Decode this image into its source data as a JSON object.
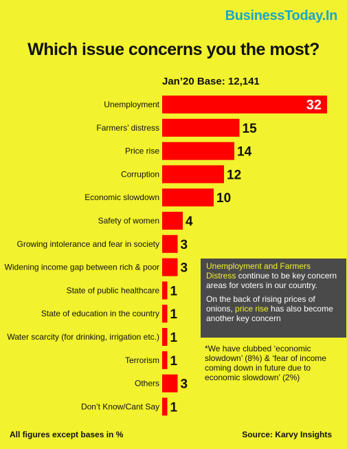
{
  "brand": {
    "name_part1": "BusinessToday",
    "name_part2": ".In"
  },
  "chart_data": {
    "type": "bar",
    "orientation": "horizontal",
    "title": "Which issue concerns you the most?",
    "subtitle": "Jan’20 Base: 12,141",
    "categories": [
      "Unemployment",
      "Farmers’ distress",
      "Price rise",
      "Corruption",
      "Economic slowdown",
      "Safety of women",
      "Growing intolerance and fear in society",
      "Widening income gap between rich & poor",
      "State of public healthcare",
      "State of education in the country",
      "Water scarcity (for drinking, irrigation etc.)",
      "Terrorism",
      "Others",
      "Don’t Know/Cant Say"
    ],
    "values": [
      32,
      15,
      14,
      12,
      10,
      4,
      3,
      3,
      1,
      1,
      1,
      1,
      3,
      1
    ],
    "xlim": [
      0,
      32
    ],
    "grid": false,
    "legend": "none",
    "bar_color": "#ff0000"
  },
  "infobox": {
    "p1_highlight": "Unemployment and Farmers Distress",
    "p1_rest": " continue to be key concern areas for voters in our country.",
    "p2_a": "On the back of rising prices of onions, ",
    "p2_highlight": "price rise",
    "p2_b": " has also become another key concern"
  },
  "footnote": "*We have clubbed ‘economic slowdown’ (8%) & ‘fear of income coming down in future due to economic slowdown’ (2%)",
  "footer": {
    "left": "All figures except bases in %",
    "right": "Source: Karvy Insights"
  },
  "colors": {
    "background": "#f2f22e",
    "bar": "#ff0000",
    "brand": "#1aa7c9",
    "infobox": "#4a4a4a"
  }
}
